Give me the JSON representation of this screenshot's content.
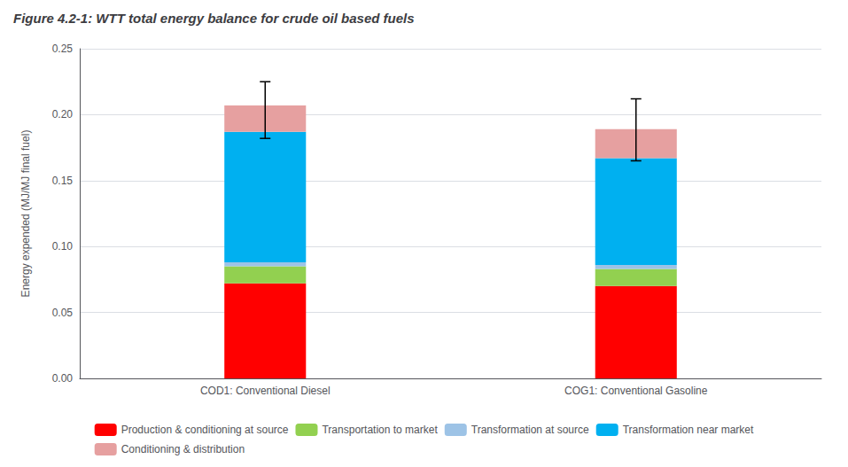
{
  "chart_data": {
    "type": "bar",
    "stacked": true,
    "title": "Figure 4.2-1: WTT total energy balance for crude oil based fuels",
    "ylabel": "Energy expended (MJ/MJ final fuel)",
    "categories": [
      "COD1: Conventional Diesel",
      "COG1: Conventional Gasoline"
    ],
    "series": [
      {
        "name": "Production & conditioning at source",
        "color": "#FF0000",
        "values": [
          0.072,
          0.07
        ]
      },
      {
        "name": "Transportation to market",
        "color": "#92D050",
        "values": [
          0.013,
          0.013
        ]
      },
      {
        "name": "Transformation at source",
        "color": "#9DC3E6",
        "values": [
          0.003,
          0.003
        ]
      },
      {
        "name": "Transformation near market",
        "color": "#00B0F0",
        "values": [
          0.099,
          0.081
        ]
      },
      {
        "name": "Conditioning & distribution",
        "color": "#E6A0A0",
        "values": [
          0.02,
          0.022
        ]
      }
    ],
    "error_bars": [
      {
        "center": 0.207,
        "minus": 0.025,
        "plus": 0.018
      },
      {
        "center": 0.187,
        "minus": 0.022,
        "plus": 0.025
      }
    ],
    "ylim": [
      0,
      0.25
    ],
    "yticks": [
      {
        "value": 0,
        "label": "0.00"
      },
      0.05,
      {
        "value": 0.1,
        "label": "0.10"
      },
      0.15,
      {
        "value": 0.2,
        "label": "0.20"
      },
      0.25
    ],
    "grid": true,
    "legend": "bottom"
  }
}
